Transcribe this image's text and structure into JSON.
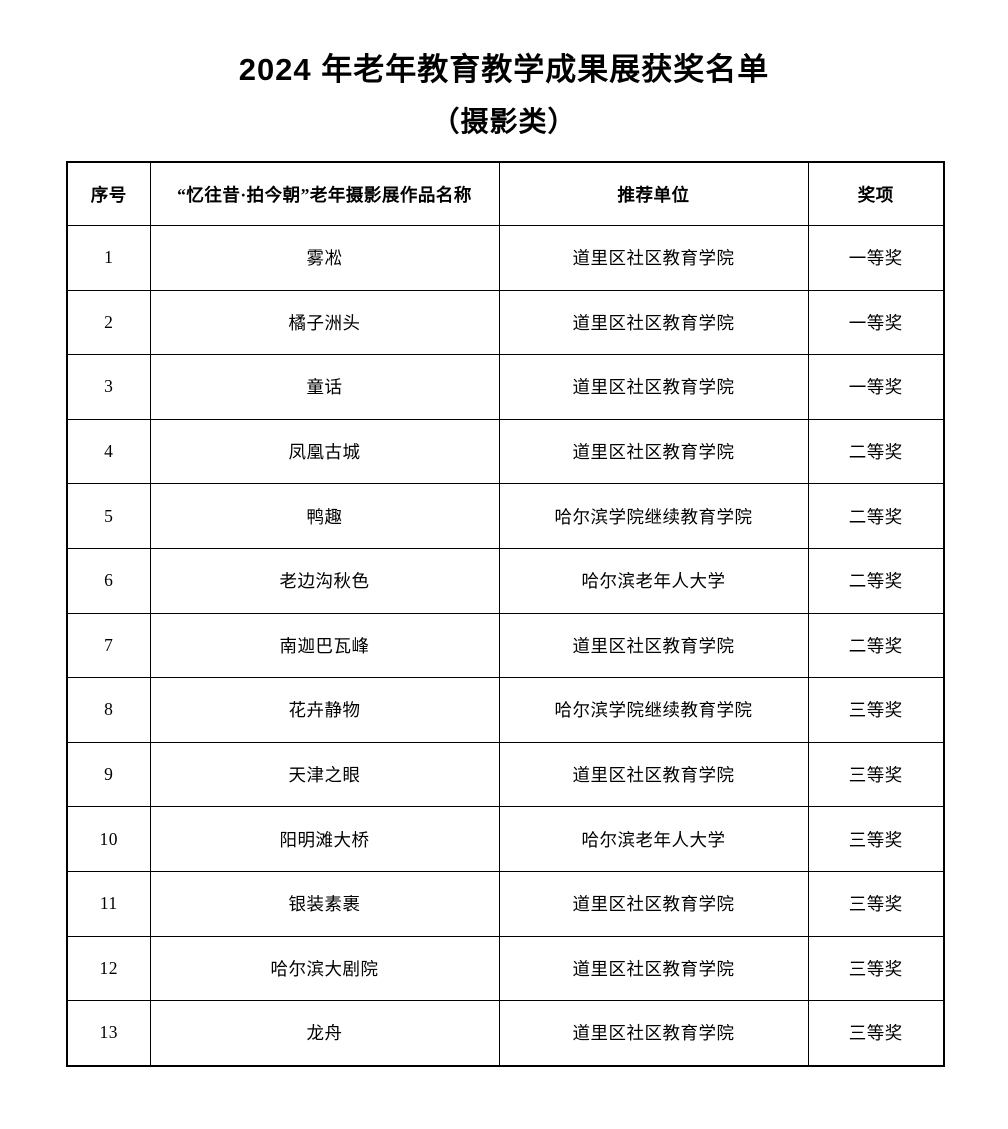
{
  "document": {
    "title": "2024 年老年教育教学成果展获奖名单",
    "subtitle": "（摄影类）"
  },
  "table": {
    "headers": [
      "序号",
      "“忆往昔·拍今朝”老年摄影展作品名称",
      "推荐单位",
      "奖项"
    ],
    "rows": [
      [
        "1",
        "雾凇",
        "道里区社区教育学院",
        "一等奖"
      ],
      [
        "2",
        "橘子洲头",
        "道里区社区教育学院",
        "一等奖"
      ],
      [
        "3",
        "童话",
        "道里区社区教育学院",
        "一等奖"
      ],
      [
        "4",
        "凤凰古城",
        "道里区社区教育学院",
        "二等奖"
      ],
      [
        "5",
        "鸭趣",
        "哈尔滨学院继续教育学院",
        "二等奖"
      ],
      [
        "6",
        "老边沟秋色",
        "哈尔滨老年人大学",
        "二等奖"
      ],
      [
        "7",
        "南迦巴瓦峰",
        "道里区社区教育学院",
        "二等奖"
      ],
      [
        "8",
        "花卉静物",
        "哈尔滨学院继续教育学院",
        "三等奖"
      ],
      [
        "9",
        "天津之眼",
        "道里区社区教育学院",
        "三等奖"
      ],
      [
        "10",
        "阳明滩大桥",
        "哈尔滨老年人大学",
        "三等奖"
      ],
      [
        "11",
        "银装素裹",
        "道里区社区教育学院",
        "三等奖"
      ],
      [
        "12",
        "哈尔滨大剧院",
        "道里区社区教育学院",
        "三等奖"
      ],
      [
        "13",
        "龙舟",
        "道里区社区教育学院",
        "三等奖"
      ]
    ]
  }
}
